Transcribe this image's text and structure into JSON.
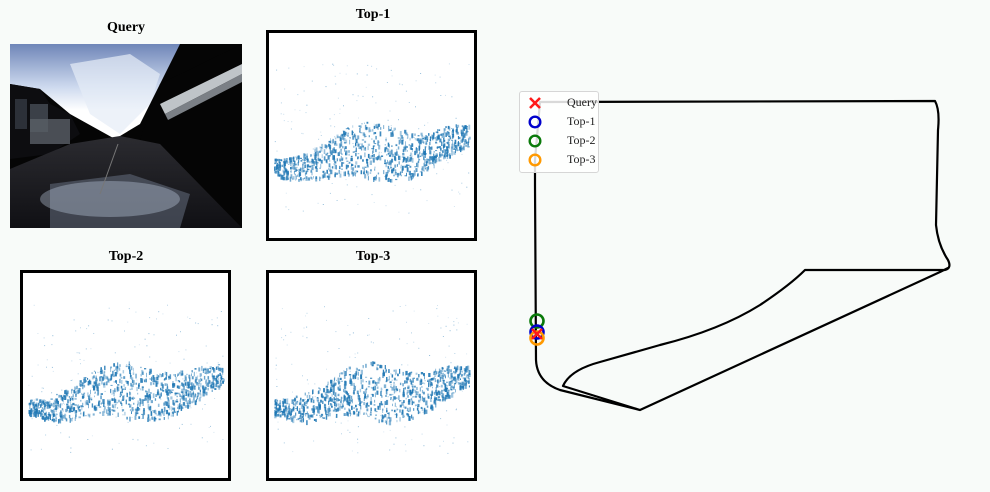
{
  "panels": {
    "query": {
      "title": "Query"
    },
    "top1": {
      "title": "Top-1"
    },
    "top2": {
      "title": "Top-2"
    },
    "top3": {
      "title": "Top-3"
    }
  },
  "legend": {
    "items": [
      {
        "label": "Query",
        "marker": "x",
        "color": "#ff1a1a"
      },
      {
        "label": "Top-1",
        "marker": "circle",
        "color": "#0000cc"
      },
      {
        "label": "Top-2",
        "marker": "circle",
        "color": "#0a7a0a"
      },
      {
        "label": "Top-3",
        "marker": "circle",
        "color": "#ff9900"
      }
    ]
  },
  "colors": {
    "point_cloud": "#1f77b4",
    "trajectory": "#000000",
    "background": "#f8fbf9"
  }
}
